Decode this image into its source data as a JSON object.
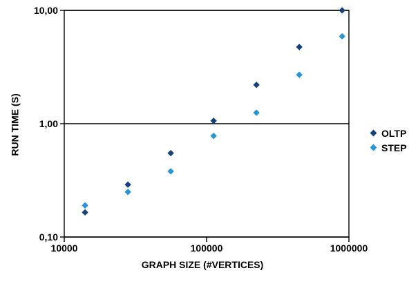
{
  "chart_data": {
    "type": "scatter",
    "title": "",
    "xlabel": "GRAPH SIZE (#VERTICES)",
    "ylabel": "RUN TIME (S)",
    "x_scale": "log",
    "y_scale": "log",
    "xlim": [
      10000,
      1000000
    ],
    "ylim": [
      0.1,
      10
    ],
    "x_tick_values": [
      10000,
      100000,
      1000000
    ],
    "x_tick_labels": [
      "10000",
      "100000",
      "1000000"
    ],
    "y_tick_values": [
      10,
      1,
      0.1
    ],
    "y_tick_labels": [
      "10,00",
      "1,00",
      "0,10"
    ],
    "grid": "major-horizontal",
    "legend_position": "right",
    "marker": "diamond",
    "x": [
      14000,
      28000,
      56000,
      112000,
      224000,
      448000,
      896000
    ],
    "series": [
      {
        "name": "OLTP",
        "color": "#15427C",
        "values": [
          0.165,
          0.29,
          0.55,
          1.06,
          2.2,
          4.75,
          10.0
        ]
      },
      {
        "name": "STEP",
        "color": "#2795D5",
        "values": [
          0.19,
          0.25,
          0.38,
          0.78,
          1.25,
          2.7,
          5.9
        ]
      }
    ],
    "colors": {
      "axis": "#000000",
      "background": "#FFFFFF",
      "text": "#000000"
    }
  }
}
